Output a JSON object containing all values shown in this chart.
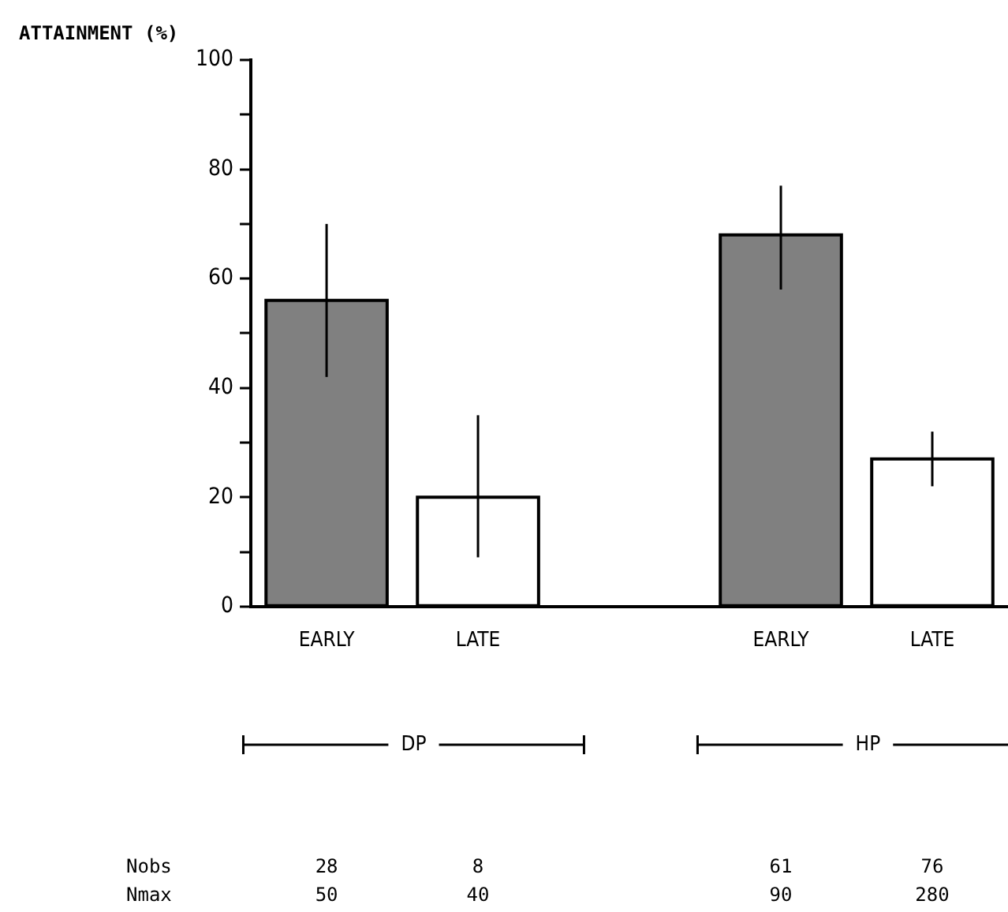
{
  "chart_data": {
    "type": "bar",
    "ylabel": "ATTAINMENT (%)",
    "categories": [
      "EARLY",
      "LATE",
      null,
      "EARLY",
      "LATE"
    ],
    "values": [
      56,
      20,
      null,
      68,
      27
    ],
    "colors": [
      "#808080",
      "#ffffff",
      null,
      "#808080",
      "#ffffff"
    ],
    "errors": [
      [
        42,
        70
      ],
      [
        9,
        35
      ],
      null,
      [
        58,
        77
      ],
      [
        22,
        32
      ]
    ],
    "ylim": [
      0,
      100
    ],
    "yticks": [
      0,
      {
        "value": 10,
        "label": null
      },
      20,
      {
        "value": 30,
        "label": null
      },
      40,
      {
        "value": 50,
        "label": null
      },
      60,
      {
        "value": 70,
        "label": null
      },
      80,
      {
        "value": 90,
        "label": null
      },
      100
    ],
    "annotations": [
      "DP",
      "HP",
      "Nobs",
      "28",
      "8",
      "61",
      "76",
      "Nmax",
      "50",
      "40",
      "90",
      "280"
    ],
    "grid": false,
    "legend": false
  }
}
